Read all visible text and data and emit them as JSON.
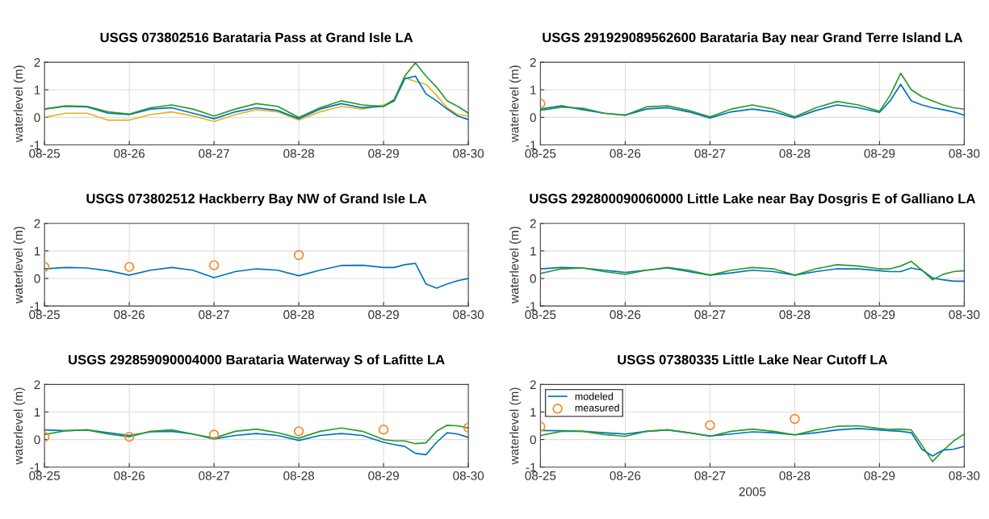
{
  "chart_data": [
    {
      "type": "line",
      "title": "USGS 073802516 Barataria Pass at Grand Isle LA",
      "ylabel": "waterlevel (m)",
      "grid": true,
      "x": [
        "2005-08-25T00:00",
        "2005-08-25T06:00",
        "2005-08-25T12:00",
        "2005-08-25T18:00",
        "2005-08-26T00:00",
        "2005-08-26T06:00",
        "2005-08-26T12:00",
        "2005-08-26T18:00",
        "2005-08-27T00:00",
        "2005-08-27T06:00",
        "2005-08-27T12:00",
        "2005-08-27T18:00",
        "2005-08-28T00:00",
        "2005-08-28T06:00",
        "2005-08-28T12:00",
        "2005-08-28T18:00",
        "2005-08-29T00:00",
        "2005-08-29T03:00",
        "2005-08-29T06:00",
        "2005-08-29T09:00",
        "2005-08-29T12:00",
        "2005-08-29T15:00",
        "2005-08-29T18:00",
        "2005-08-29T21:00",
        "2005-08-30T00:00"
      ],
      "xlim": [
        "2005-08-25T00:00",
        "2005-08-30T00:00"
      ],
      "xticks": [
        {
          "value": "2005-08-25",
          "label": "08-25"
        },
        {
          "value": "2005-08-26",
          "label": "08-26"
        },
        {
          "value": "2005-08-27",
          "label": "08-27"
        },
        {
          "value": "2005-08-28",
          "label": "08-28"
        },
        {
          "value": "2005-08-29",
          "label": "08-29"
        },
        {
          "value": "2005-08-30",
          "label": "08-30"
        }
      ],
      "ylim": [
        -1,
        2
      ],
      "yticks": [
        -1,
        0,
        1,
        2
      ],
      "series": [
        {
          "type": "line",
          "color": "#edb120",
          "values": [
            0.0,
            0.15,
            0.15,
            -0.1,
            -0.1,
            0.1,
            0.2,
            0.05,
            -0.15,
            0.1,
            0.28,
            0.2,
            -0.1,
            0.2,
            0.4,
            0.3,
            0.45,
            0.6,
            1.45,
            1.3,
            1.2,
            0.8,
            0.35,
            0.1,
            0.05
          ]
        },
        {
          "type": "line",
          "color": "#0072bd",
          "values": [
            0.3,
            0.4,
            0.38,
            0.15,
            0.1,
            0.3,
            0.35,
            0.15,
            -0.05,
            0.2,
            0.35,
            0.25,
            -0.05,
            0.3,
            0.5,
            0.35,
            0.4,
            0.6,
            1.4,
            1.5,
            0.85,
            0.6,
            0.3,
            0.05,
            -0.08
          ]
        },
        {
          "type": "line",
          "color": "#2a9a2a",
          "values": [
            0.3,
            0.42,
            0.4,
            0.2,
            0.12,
            0.35,
            0.45,
            0.3,
            0.05,
            0.3,
            0.5,
            0.4,
            0.0,
            0.35,
            0.6,
            0.45,
            0.4,
            0.65,
            1.5,
            1.98,
            1.5,
            1.1,
            0.6,
            0.4,
            0.15
          ]
        }
      ]
    },
    {
      "type": "line",
      "title": "USGS 291929089562600 Barataria Bay near Grand Terre Island LA",
      "ylabel": "waterlevel (m)",
      "grid": true,
      "x": [
        "2005-08-25T00:00",
        "2005-08-25T06:00",
        "2005-08-25T12:00",
        "2005-08-25T18:00",
        "2005-08-26T00:00",
        "2005-08-26T06:00",
        "2005-08-26T12:00",
        "2005-08-26T18:00",
        "2005-08-27T00:00",
        "2005-08-27T06:00",
        "2005-08-27T12:00",
        "2005-08-27T18:00",
        "2005-08-28T00:00",
        "2005-08-28T06:00",
        "2005-08-28T12:00",
        "2005-08-28T18:00",
        "2005-08-29T00:00",
        "2005-08-29T03:00",
        "2005-08-29T06:00",
        "2005-08-29T09:00",
        "2005-08-29T12:00",
        "2005-08-29T15:00",
        "2005-08-29T18:00",
        "2005-08-29T21:00",
        "2005-08-30T00:00"
      ],
      "xlim": [
        "2005-08-25T00:00",
        "2005-08-30T00:00"
      ],
      "xticks": [
        {
          "value": "2005-08-25",
          "label": "08-25"
        },
        {
          "value": "2005-08-26",
          "label": "08-26"
        },
        {
          "value": "2005-08-27",
          "label": "08-27"
        },
        {
          "value": "2005-08-28",
          "label": "08-28"
        },
        {
          "value": "2005-08-29",
          "label": "08-29"
        },
        {
          "value": "2005-08-30",
          "label": "08-30"
        }
      ],
      "ylim": [
        -1,
        2
      ],
      "yticks": [
        -1,
        0,
        1,
        2
      ],
      "series": [
        {
          "type": "line",
          "color": "#0072bd",
          "values": [
            0.3,
            0.42,
            0.28,
            0.15,
            0.08,
            0.3,
            0.35,
            0.2,
            -0.02,
            0.2,
            0.3,
            0.2,
            -0.02,
            0.25,
            0.45,
            0.35,
            0.18,
            0.6,
            1.2,
            0.6,
            0.45,
            0.35,
            0.28,
            0.2,
            0.08
          ]
        },
        {
          "type": "line",
          "color": "#2a9a2a",
          "values": [
            0.25,
            0.37,
            0.33,
            0.15,
            0.08,
            0.38,
            0.42,
            0.25,
            0.02,
            0.3,
            0.45,
            0.3,
            0.02,
            0.35,
            0.58,
            0.45,
            0.22,
            0.8,
            1.6,
            1.0,
            0.75,
            0.6,
            0.45,
            0.35,
            0.3
          ]
        },
        {
          "type": "scatter",
          "color": "#f28a1f",
          "marker": "circle",
          "x": [
            "2005-08-25T00:00"
          ],
          "values": [
            0.5
          ]
        }
      ]
    },
    {
      "type": "line",
      "title": "USGS 073802512 Hackberry Bay NW of Grand Isle LA",
      "ylabel": "waterlevel (m)",
      "grid": true,
      "x": [
        "2005-08-25T00:00",
        "2005-08-25T06:00",
        "2005-08-25T12:00",
        "2005-08-25T18:00",
        "2005-08-26T00:00",
        "2005-08-26T06:00",
        "2005-08-26T12:00",
        "2005-08-26T18:00",
        "2005-08-27T00:00",
        "2005-08-27T06:00",
        "2005-08-27T12:00",
        "2005-08-27T18:00",
        "2005-08-28T00:00",
        "2005-08-28T06:00",
        "2005-08-28T12:00",
        "2005-08-28T18:00",
        "2005-08-29T00:00",
        "2005-08-29T03:00",
        "2005-08-29T06:00",
        "2005-08-29T09:00",
        "2005-08-29T12:00",
        "2005-08-29T15:00",
        "2005-08-29T18:00",
        "2005-08-29T21:00",
        "2005-08-30T00:00"
      ],
      "xlim": [
        "2005-08-25T00:00",
        "2005-08-30T00:00"
      ],
      "xticks": [
        {
          "value": "2005-08-25",
          "label": "08-25"
        },
        {
          "value": "2005-08-26",
          "label": "08-26"
        },
        {
          "value": "2005-08-27",
          "label": "08-27"
        },
        {
          "value": "2005-08-28",
          "label": "08-28"
        },
        {
          "value": "2005-08-29",
          "label": "08-29"
        },
        {
          "value": "2005-08-30",
          "label": "08-30"
        }
      ],
      "ylim": [
        -1,
        2
      ],
      "yticks": [
        -1,
        0,
        1,
        2
      ],
      "series": [
        {
          "type": "line",
          "color": "#0072bd",
          "values": [
            0.35,
            0.4,
            0.38,
            0.28,
            0.12,
            0.3,
            0.4,
            0.3,
            0.03,
            0.25,
            0.35,
            0.3,
            0.1,
            0.3,
            0.47,
            0.48,
            0.4,
            0.4,
            0.5,
            0.55,
            -0.2,
            -0.35,
            -0.2,
            -0.08,
            0.0
          ]
        },
        {
          "type": "scatter",
          "color": "#f28a1f",
          "marker": "circle",
          "x": [
            "2005-08-25T00:00",
            "2005-08-26T00:00",
            "2005-08-27T00:00",
            "2005-08-28T00:00"
          ],
          "values": [
            0.42,
            0.42,
            0.48,
            0.85
          ]
        }
      ]
    },
    {
      "type": "line",
      "title": "USGS 292800090060000 Little Lake near Bay Dosgris E of Galliano LA",
      "ylabel": "waterlevel (m)",
      "grid": true,
      "x": [
        "2005-08-25T00:00",
        "2005-08-25T06:00",
        "2005-08-25T12:00",
        "2005-08-25T18:00",
        "2005-08-26T00:00",
        "2005-08-26T06:00",
        "2005-08-26T12:00",
        "2005-08-26T18:00",
        "2005-08-27T00:00",
        "2005-08-27T06:00",
        "2005-08-27T12:00",
        "2005-08-27T18:00",
        "2005-08-28T00:00",
        "2005-08-28T06:00",
        "2005-08-28T12:00",
        "2005-08-28T18:00",
        "2005-08-29T00:00",
        "2005-08-29T03:00",
        "2005-08-29T06:00",
        "2005-08-29T09:00",
        "2005-08-29T12:00",
        "2005-08-29T15:00",
        "2005-08-29T18:00",
        "2005-08-29T21:00",
        "2005-08-30T00:00"
      ],
      "xlim": [
        "2005-08-25T00:00",
        "2005-08-30T00:00"
      ],
      "xticks": [
        {
          "value": "2005-08-25",
          "label": "08-25"
        },
        {
          "value": "2005-08-26",
          "label": "08-26"
        },
        {
          "value": "2005-08-27",
          "label": "08-27"
        },
        {
          "value": "2005-08-28",
          "label": "08-28"
        },
        {
          "value": "2005-08-29",
          "label": "08-29"
        },
        {
          "value": "2005-08-30",
          "label": "08-30"
        }
      ],
      "ylim": [
        -1,
        2
      ],
      "yticks": [
        -1,
        0,
        1,
        2
      ],
      "series": [
        {
          "type": "line",
          "color": "#0072bd",
          "values": [
            0.35,
            0.4,
            0.38,
            0.3,
            0.22,
            0.3,
            0.38,
            0.25,
            0.12,
            0.2,
            0.3,
            0.25,
            0.12,
            0.25,
            0.35,
            0.35,
            0.28,
            0.25,
            0.25,
            0.38,
            0.3,
            0.02,
            -0.05,
            -0.1,
            -0.1
          ]
        },
        {
          "type": "line",
          "color": "#2a9a2a",
          "values": [
            0.18,
            0.35,
            0.38,
            0.25,
            0.15,
            0.3,
            0.4,
            0.3,
            0.12,
            0.3,
            0.4,
            0.35,
            0.12,
            0.35,
            0.5,
            0.45,
            0.35,
            0.35,
            0.45,
            0.62,
            0.3,
            -0.05,
            0.15,
            0.25,
            0.28
          ]
        }
      ]
    },
    {
      "type": "line",
      "title": "USGS 292859090004000 Barataria Waterway S of Lafitte LA",
      "ylabel": "waterlevel (m)",
      "grid": true,
      "x": [
        "2005-08-25T00:00",
        "2005-08-25T06:00",
        "2005-08-25T12:00",
        "2005-08-25T18:00",
        "2005-08-26T00:00",
        "2005-08-26T06:00",
        "2005-08-26T12:00",
        "2005-08-26T18:00",
        "2005-08-27T00:00",
        "2005-08-27T06:00",
        "2005-08-27T12:00",
        "2005-08-27T18:00",
        "2005-08-28T00:00",
        "2005-08-28T06:00",
        "2005-08-28T12:00",
        "2005-08-28T18:00",
        "2005-08-29T00:00",
        "2005-08-29T03:00",
        "2005-08-29T06:00",
        "2005-08-29T09:00",
        "2005-08-29T12:00",
        "2005-08-29T15:00",
        "2005-08-29T18:00",
        "2005-08-29T21:00",
        "2005-08-30T00:00"
      ],
      "xlim": [
        "2005-08-25T00:00",
        "2005-08-30T00:00"
      ],
      "xticks": [
        {
          "value": "2005-08-25",
          "label": "08-25"
        },
        {
          "value": "2005-08-26",
          "label": "08-26"
        },
        {
          "value": "2005-08-27",
          "label": "08-27"
        },
        {
          "value": "2005-08-28",
          "label": "08-28"
        },
        {
          "value": "2005-08-29",
          "label": "08-29"
        },
        {
          "value": "2005-08-30",
          "label": "08-30"
        }
      ],
      "ylim": [
        -1,
        2
      ],
      "yticks": [
        -1,
        0,
        1,
        2
      ],
      "series": [
        {
          "type": "line",
          "color": "#0072bd",
          "values": [
            0.35,
            0.32,
            0.35,
            0.25,
            0.15,
            0.28,
            0.3,
            0.2,
            0.02,
            0.15,
            0.22,
            0.15,
            -0.03,
            0.15,
            0.22,
            0.15,
            -0.1,
            -0.18,
            -0.25,
            -0.5,
            -0.55,
            -0.1,
            0.25,
            0.2,
            0.08
          ]
        },
        {
          "type": "line",
          "color": "#2a9a2a",
          "values": [
            0.18,
            0.32,
            0.35,
            0.2,
            0.1,
            0.3,
            0.35,
            0.2,
            0.05,
            0.3,
            0.38,
            0.25,
            0.05,
            0.3,
            0.42,
            0.3,
            0.0,
            -0.05,
            -0.05,
            -0.15,
            -0.12,
            0.3,
            0.52,
            0.5,
            0.42
          ]
        },
        {
          "type": "scatter",
          "color": "#f28a1f",
          "marker": "circle",
          "x": [
            "2005-08-25T00:00",
            "2005-08-26T00:00",
            "2005-08-27T00:00",
            "2005-08-28T00:00",
            "2005-08-29T00:00",
            "2005-08-30T00:00"
          ],
          "values": [
            0.1,
            0.1,
            0.18,
            0.3,
            0.36,
            0.43
          ]
        }
      ]
    },
    {
      "type": "line",
      "title": "USGS 07380335 Little Lake Near Cutoff LA",
      "ylabel": "waterlevel (m)",
      "xlabel": "2005",
      "grid": true,
      "legend": "top left",
      "x": [
        "2005-08-25T00:00",
        "2005-08-25T06:00",
        "2005-08-25T12:00",
        "2005-08-25T18:00",
        "2005-08-26T00:00",
        "2005-08-26T06:00",
        "2005-08-26T12:00",
        "2005-08-26T18:00",
        "2005-08-27T00:00",
        "2005-08-27T06:00",
        "2005-08-27T12:00",
        "2005-08-27T18:00",
        "2005-08-28T00:00",
        "2005-08-28T06:00",
        "2005-08-28T12:00",
        "2005-08-28T18:00",
        "2005-08-29T00:00",
        "2005-08-29T03:00",
        "2005-08-29T06:00",
        "2005-08-29T09:00",
        "2005-08-29T12:00",
        "2005-08-29T15:00",
        "2005-08-29T18:00",
        "2005-08-29T21:00",
        "2005-08-30T00:00"
      ],
      "xlim": [
        "2005-08-25T00:00",
        "2005-08-30T00:00"
      ],
      "xticks": [
        {
          "value": "2005-08-25",
          "label": "08-25"
        },
        {
          "value": "2005-08-26",
          "label": "08-26"
        },
        {
          "value": "2005-08-27",
          "label": "08-27"
        },
        {
          "value": "2005-08-28",
          "label": "08-28"
        },
        {
          "value": "2005-08-29",
          "label": "08-29"
        },
        {
          "value": "2005-08-30",
          "label": "08-30"
        }
      ],
      "ylim": [
        -1,
        2
      ],
      "yticks": [
        -1,
        0,
        1,
        2
      ],
      "series": [
        {
          "type": "line",
          "name": "modeled",
          "color": "#0072bd",
          "values": [
            0.33,
            0.32,
            0.3,
            0.25,
            0.2,
            0.3,
            0.35,
            0.25,
            0.13,
            0.2,
            0.28,
            0.25,
            0.17,
            0.25,
            0.35,
            0.4,
            0.35,
            0.32,
            0.3,
            0.25,
            -0.35,
            -0.6,
            -0.38,
            -0.35,
            -0.25
          ]
        },
        {
          "type": "line",
          "color": "#2a9a2a",
          "values": [
            0.15,
            0.3,
            0.3,
            0.18,
            0.12,
            0.3,
            0.35,
            0.25,
            0.12,
            0.3,
            0.38,
            0.3,
            0.17,
            0.35,
            0.48,
            0.5,
            0.4,
            0.37,
            0.38,
            0.35,
            -0.2,
            -0.8,
            -0.4,
            -0.05,
            0.2
          ]
        },
        {
          "type": "scatter",
          "name": "measured",
          "color": "#f28a1f",
          "marker": "circle",
          "x": [
            "2005-08-25T00:00",
            "2005-08-27T00:00",
            "2005-08-28T00:00"
          ],
          "values": [
            0.47,
            0.52,
            0.75
          ]
        }
      ]
    }
  ]
}
